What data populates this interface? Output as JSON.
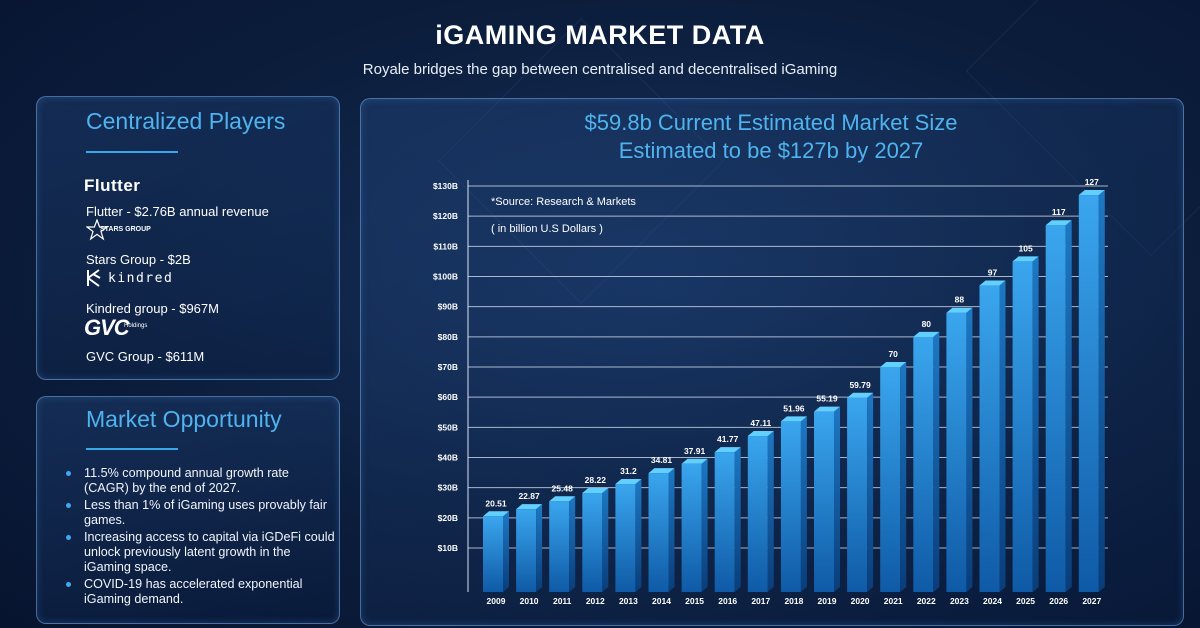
{
  "header": {
    "title": "iGAMING MARKET DATA",
    "subtitle": "Royale bridges the gap between centralised and decentralised iGaming"
  },
  "players": {
    "title": "Centralized Players",
    "items": [
      {
        "logo_text": "Flutter",
        "caption": "Flutter - $2.76B annual revenue"
      },
      {
        "logo_text": "STARS GROUP",
        "caption": "Stars Group - $2B"
      },
      {
        "logo_text": "kindred",
        "caption": "Kindred group - $967M"
      },
      {
        "logo_text": "GVC",
        "logo_subtext": "Holdings",
        "caption": "GVC Group - $611M"
      }
    ]
  },
  "opportunity": {
    "title": "Market Opportunity",
    "bullets": [
      "11.5% compound annual growth rate (CAGR) by the end of 2027.",
      "Less than 1% of iGaming uses provably fair games.",
      "Increasing access to capital via iGDeFi could unlock previously latent growth in the iGaming space.",
      "COVID-19 has accelerated exponential iGaming demand."
    ]
  },
  "colors": {
    "accent": "#4fb3ee",
    "bar_front": "#2a8fd8",
    "bar_top": "#4fc3ff"
  },
  "chart_data": {
    "type": "bar",
    "title_line1": "$59.8b Current Estimated Market Size",
    "title_line2": "Estimated to be $127b by 2027",
    "source_note": "*Source: Research & Markets",
    "unit_note": "( in billion U.S Dollars )",
    "categories": [
      "2009",
      "2010",
      "2011",
      "2012",
      "2013",
      "2014",
      "2015",
      "2016",
      "2017",
      "2018",
      "2019",
      "2020",
      "2021",
      "2022",
      "2023",
      "2024",
      "2025",
      "2026",
      "2027"
    ],
    "values": [
      20.51,
      22.87,
      25.48,
      28.22,
      31.2,
      34.81,
      37.91,
      41.77,
      47.11,
      51.96,
      55.19,
      59.79,
      70,
      80,
      88,
      97,
      105,
      117,
      127
    ],
    "value_labels": [
      "20.51",
      "22.87",
      "25.48",
      "28.22",
      "31.2",
      "34.81",
      "37.91",
      "41.77",
      "47.11",
      "51.96",
      "55.19",
      "59.79",
      "70",
      "80",
      "88",
      "97",
      "105",
      "117",
      "127"
    ],
    "y_ticks": [
      10,
      20,
      30,
      40,
      50,
      60,
      70,
      80,
      90,
      100,
      110,
      120,
      130
    ],
    "y_tick_labels": [
      "$10B",
      "$20B",
      "$30B",
      "$40B",
      "$50B",
      "$60B",
      "$70B",
      "$80B",
      "$90B",
      "$100B",
      "$110B",
      "$120B",
      "$130B"
    ],
    "ylim": [
      0,
      130
    ],
    "xlabel": "",
    "ylabel": ""
  }
}
